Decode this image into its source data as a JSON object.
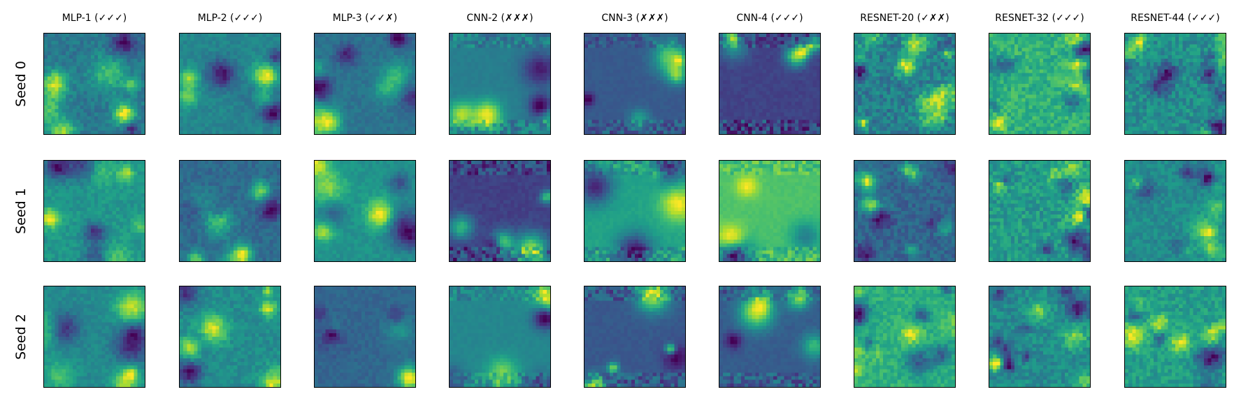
{
  "chart_data": {
    "type": "heatmap",
    "columns": [
      "MLP-1 (✓✓✓)",
      "MLP-2 (✓✓✓)",
      "MLP-3 (✓✓✗)",
      "CNN-2 (✗✗✗)",
      "CNN-3 (✗✗✗)",
      "CNN-4 (✓✓✓)",
      "RESNET-20 (✓✗✗)",
      "RESNET-32 (✓✓✓)",
      "RESNET-44 (✓✓✓)"
    ],
    "rows": [
      "Seed 0",
      "Seed 1",
      "Seed 2"
    ],
    "colormap": "viridis",
    "grid": false,
    "ticks": false
  }
}
